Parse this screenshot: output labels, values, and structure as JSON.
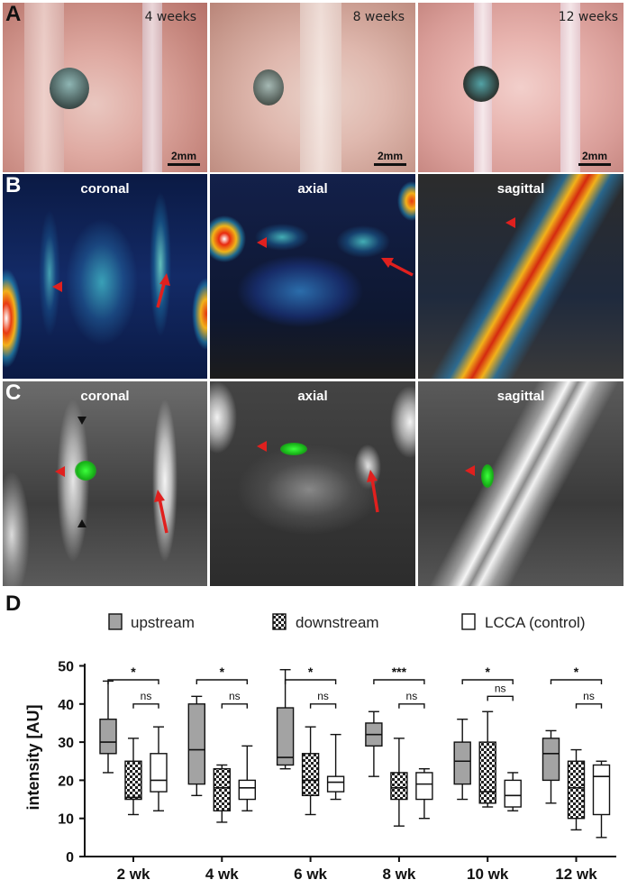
{
  "panel_a": {
    "label": "A",
    "tiles": [
      {
        "time": "4 weeks",
        "scale": "2mm"
      },
      {
        "time": "8 weeks",
        "scale": "2mm"
      },
      {
        "time": "12 weeks",
        "scale": "2mm"
      }
    ]
  },
  "panel_b": {
    "label": "B",
    "views": [
      "coronal",
      "axial",
      "sagittal"
    ]
  },
  "panel_c": {
    "label": "C",
    "views": [
      "coronal",
      "axial",
      "sagittal"
    ]
  },
  "panel_d": {
    "label": "D",
    "legend": [
      "upstream",
      "downstream",
      "LCCA (control)"
    ]
  },
  "colors": {
    "upstream": "#a3a3a3",
    "downstream_pattern": "checkered",
    "control": "#ffffff",
    "arrow": "#e0201e"
  },
  "chart_data": {
    "type": "box",
    "ylabel": "intensity [AU]",
    "ylim": [
      0,
      55
    ],
    "yticks": [
      0,
      10,
      20,
      30,
      40,
      50
    ],
    "categories": [
      "2 wk",
      "4 wk",
      "6 wk",
      "8 wk",
      "10 wk",
      "12 wk"
    ],
    "series": [
      {
        "name": "upstream",
        "boxes": [
          {
            "min": 22,
            "q1": 27,
            "median": 30,
            "q3": 36,
            "max": 46
          },
          {
            "min": 16,
            "q1": 19,
            "median": 28,
            "q3": 40,
            "max": 42
          },
          {
            "min": 23,
            "q1": 24,
            "median": 26,
            "q3": 39,
            "max": 49
          },
          {
            "min": 21,
            "q1": 29,
            "median": 32,
            "q3": 35,
            "max": 38
          },
          {
            "min": 15,
            "q1": 19,
            "median": 25,
            "q3": 30,
            "max": 36
          },
          {
            "min": 14,
            "q1": 20,
            "median": 27,
            "q3": 31,
            "max": 33
          }
        ]
      },
      {
        "name": "downstream",
        "boxes": [
          {
            "min": 11,
            "q1": 15,
            "median": 15.5,
            "q3": 25,
            "max": 31
          },
          {
            "min": 9,
            "q1": 12,
            "median": 18,
            "q3": 23,
            "max": 24
          },
          {
            "min": 11,
            "q1": 16,
            "median": 20,
            "q3": 27,
            "max": 34
          },
          {
            "min": 8,
            "q1": 15,
            "median": 18,
            "q3": 22,
            "max": 31
          },
          {
            "min": 13,
            "q1": 14,
            "median": 17,
            "q3": 30,
            "max": 38
          },
          {
            "min": 7,
            "q1": 10,
            "median": 18,
            "q3": 25,
            "max": 28
          }
        ]
      },
      {
        "name": "LCCA (control)",
        "boxes": [
          {
            "min": 12,
            "q1": 17,
            "median": 20,
            "q3": 27,
            "max": 34
          },
          {
            "min": 12,
            "q1": 15,
            "median": 18,
            "q3": 20,
            "max": 29
          },
          {
            "min": 15,
            "q1": 17,
            "median": 19.5,
            "q3": 21,
            "max": 32
          },
          {
            "min": 10,
            "q1": 15,
            "median": 19,
            "q3": 22,
            "max": 23
          },
          {
            "min": 12,
            "q1": 13,
            "median": 16,
            "q3": 20,
            "max": 22
          },
          {
            "min": 5,
            "q1": 11,
            "median": 21,
            "q3": 24,
            "max": 25
          }
        ]
      }
    ],
    "significance": [
      {
        "category": "2 wk",
        "upstream_vs_control": "*",
        "downstream_vs_control": "ns"
      },
      {
        "category": "4 wk",
        "upstream_vs_control": "*",
        "downstream_vs_control": "ns"
      },
      {
        "category": "6 wk",
        "upstream_vs_control": "*",
        "downstream_vs_control": "ns"
      },
      {
        "category": "8 wk",
        "upstream_vs_control": "***",
        "downstream_vs_control": "ns"
      },
      {
        "category": "10 wk",
        "upstream_vs_control": "*",
        "downstream_vs_control": "ns"
      },
      {
        "category": "12 wk",
        "upstream_vs_control": "*",
        "downstream_vs_control": "ns"
      }
    ]
  }
}
